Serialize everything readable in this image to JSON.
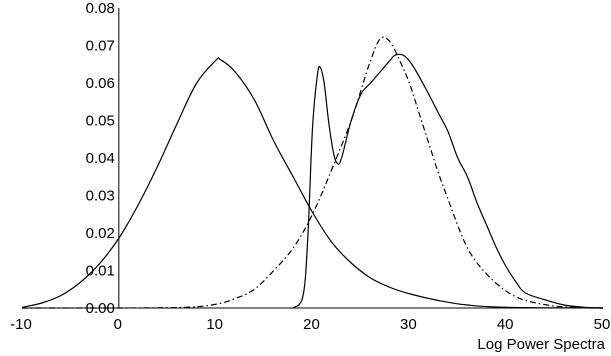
{
  "chart_data": {
    "type": "line",
    "title": "",
    "xlabel": "Log Power Spectra",
    "ylabel": "",
    "xlim": [
      -10,
      50
    ],
    "ylim": [
      0,
      0.08
    ],
    "x_ticks": [
      "-10",
      "0",
      "10",
      "20",
      "30",
      "40",
      "50"
    ],
    "y_ticks": [
      "0.00",
      "0.01",
      "0.02",
      "0.03",
      "0.04",
      "0.05",
      "0.06",
      "0.07",
      "0.08"
    ],
    "grid": false,
    "legend": "none",
    "series": [
      {
        "line_style": "solid",
        "x": [
          -10,
          -8,
          -6,
          -4,
          -2,
          0,
          2,
          4,
          6,
          8,
          10,
          10.5,
          12,
          14,
          16,
          18,
          20,
          22,
          24,
          26,
          28,
          30,
          33,
          36,
          40,
          50
        ],
        "y": [
          0.0002,
          0.0013,
          0.0033,
          0.0068,
          0.0118,
          0.0186,
          0.0275,
          0.0378,
          0.0491,
          0.0598,
          0.066,
          0.0662,
          0.063,
          0.0555,
          0.0445,
          0.035,
          0.0255,
          0.0175,
          0.012,
          0.008,
          0.0055,
          0.0038,
          0.002,
          0.0008,
          0.0002,
          0.0
        ]
      },
      {
        "line_style": "solid",
        "x": [
          18,
          19,
          19.5,
          20,
          20.5,
          20.8,
          21.2,
          21.7,
          22.2,
          22.6,
          23,
          24,
          25,
          26,
          27,
          28,
          28.6,
          29.5,
          30.5,
          32,
          33,
          34,
          35,
          36,
          37,
          38,
          39,
          40,
          41,
          42,
          44,
          46,
          48,
          50
        ],
        "y": [
          0.0,
          0.003,
          0.018,
          0.048,
          0.062,
          0.0642,
          0.06,
          0.049,
          0.041,
          0.0385,
          0.04,
          0.05,
          0.057,
          0.06,
          0.063,
          0.066,
          0.0675,
          0.0672,
          0.064,
          0.057,
          0.052,
          0.047,
          0.04,
          0.035,
          0.028,
          0.022,
          0.016,
          0.011,
          0.007,
          0.004,
          0.0022,
          0.0008,
          0.0002,
          0.0
        ]
      },
      {
        "line_style": "dash-dot",
        "x": [
          -10,
          0,
          7,
          10,
          12,
          14,
          16,
          18,
          20,
          22,
          24,
          25,
          26,
          27,
          28,
          29,
          30,
          31,
          32,
          33,
          34,
          35,
          36,
          37,
          38,
          39,
          40,
          41,
          42,
          44,
          46,
          50
        ],
        "y": [
          0.0,
          0.0,
          0.0002,
          0.001,
          0.0025,
          0.005,
          0.01,
          0.016,
          0.025,
          0.037,
          0.05,
          0.058,
          0.066,
          0.0718,
          0.071,
          0.066,
          0.06,
          0.052,
          0.044,
          0.036,
          0.029,
          0.022,
          0.016,
          0.012,
          0.009,
          0.0065,
          0.0045,
          0.003,
          0.002,
          0.0009,
          0.0003,
          0.0
        ]
      }
    ]
  }
}
